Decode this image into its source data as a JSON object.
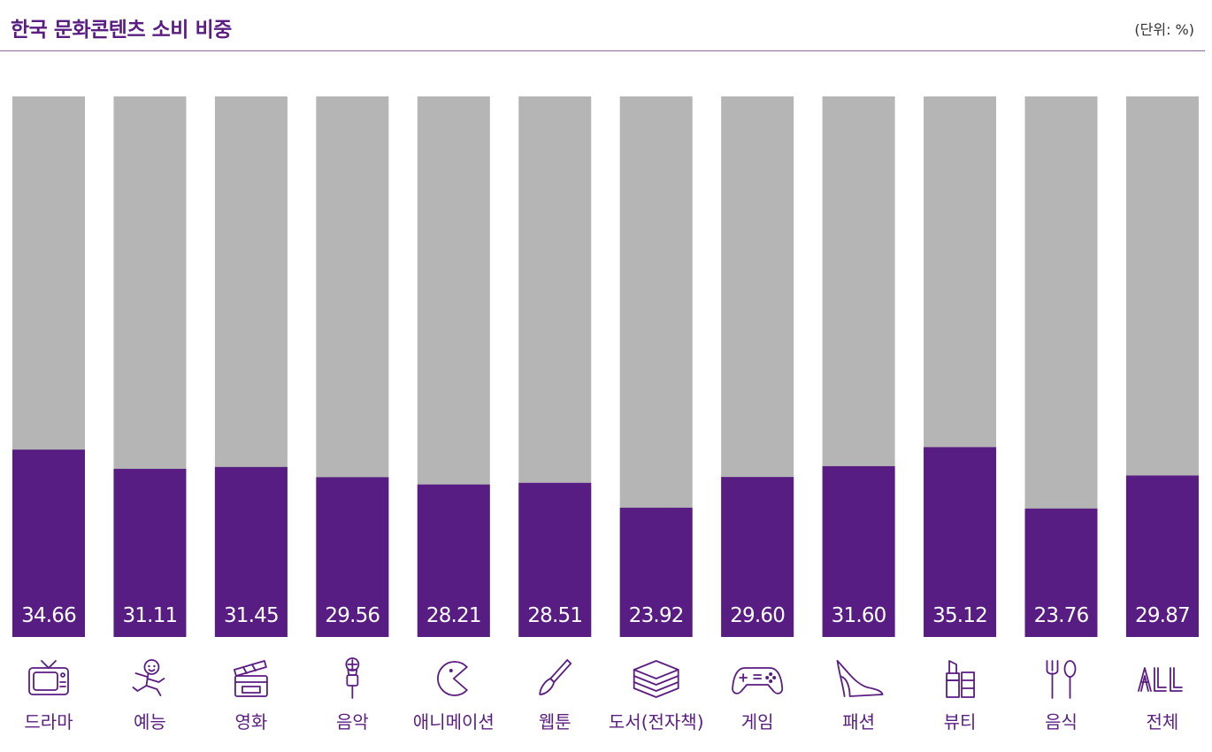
{
  "title": "한국 문화콘텐츠 소비 비중",
  "unit": "(단위: %)",
  "colors": {
    "accent": "#581d82",
    "track": "#b4b5b4"
  },
  "chart_data": {
    "type": "bar",
    "title": "한국 문화콘텐츠 소비 비중",
    "ylim": [
      0,
      100
    ],
    "grid": false,
    "categories": [
      "드라마",
      "예능",
      "영화",
      "음악",
      "애니메이션",
      "웹툰",
      "도서(전자책)",
      "게임",
      "패션",
      "뷰티",
      "음식",
      "전체"
    ],
    "values": [
      34.66,
      31.11,
      31.45,
      29.56,
      28.21,
      28.51,
      23.92,
      29.6,
      31.6,
      35.12,
      23.76,
      29.87
    ],
    "value_labels": [
      "34.66",
      "31.11",
      "31.45",
      "29.56",
      "28.21",
      "28.51",
      "23.92",
      "29.60",
      "31.60",
      "35.12",
      "23.76",
      "29.87"
    ],
    "icons": [
      "tv-icon",
      "dancer-icon",
      "clapperboard-icon",
      "microphone-icon",
      "pacman-icon",
      "paintbrush-icon",
      "books-icon",
      "gamepad-icon",
      "high-heel-icon",
      "lipstick-icon",
      "fork-spoon-icon",
      "all-icon"
    ]
  }
}
